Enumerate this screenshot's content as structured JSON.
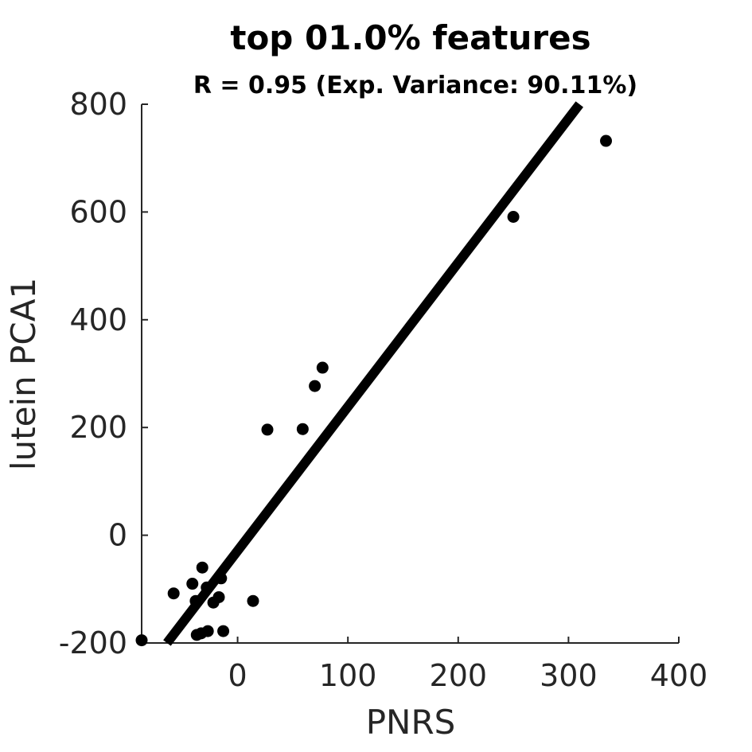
{
  "chart_data": {
    "type": "scatter",
    "title": "top 01.0% features",
    "subtitle": "R = 0.95 (Exp. Variance: 90.11%)",
    "xlabel": "PNRS",
    "ylabel": "lutein PCA1",
    "xlim": [
      -87,
      400
    ],
    "ylim": [
      -200,
      800
    ],
    "xticks": [
      "0",
      "100",
      "200",
      "300",
      "400"
    ],
    "yticks": [
      "-200",
      "0",
      "200",
      "400",
      "600",
      "800"
    ],
    "grid": false,
    "point_color": "#000000",
    "line_color": "#000000",
    "points": [
      {
        "x": -87,
        "y": -195
      },
      {
        "x": -58,
        "y": -108
      },
      {
        "x": -41,
        "y": -90
      },
      {
        "x": -38,
        "y": -122
      },
      {
        "x": -32,
        "y": -60
      },
      {
        "x": -28,
        "y": -97
      },
      {
        "x": -22,
        "y": -125
      },
      {
        "x": -17,
        "y": -115
      },
      {
        "x": -15,
        "y": -80
      },
      {
        "x": -37,
        "y": -185
      },
      {
        "x": -33,
        "y": -182
      },
      {
        "x": -27,
        "y": -178
      },
      {
        "x": -13,
        "y": -178
      },
      {
        "x": 14,
        "y": -122
      },
      {
        "x": 27,
        "y": 196
      },
      {
        "x": 59,
        "y": 197
      },
      {
        "x": 70,
        "y": 277
      },
      {
        "x": 77,
        "y": 311
      },
      {
        "x": 250,
        "y": 591
      },
      {
        "x": 334,
        "y": 732
      }
    ],
    "fit_line": {
      "x": [
        -64,
        310
      ],
      "y": [
        -200,
        800
      ]
    }
  }
}
